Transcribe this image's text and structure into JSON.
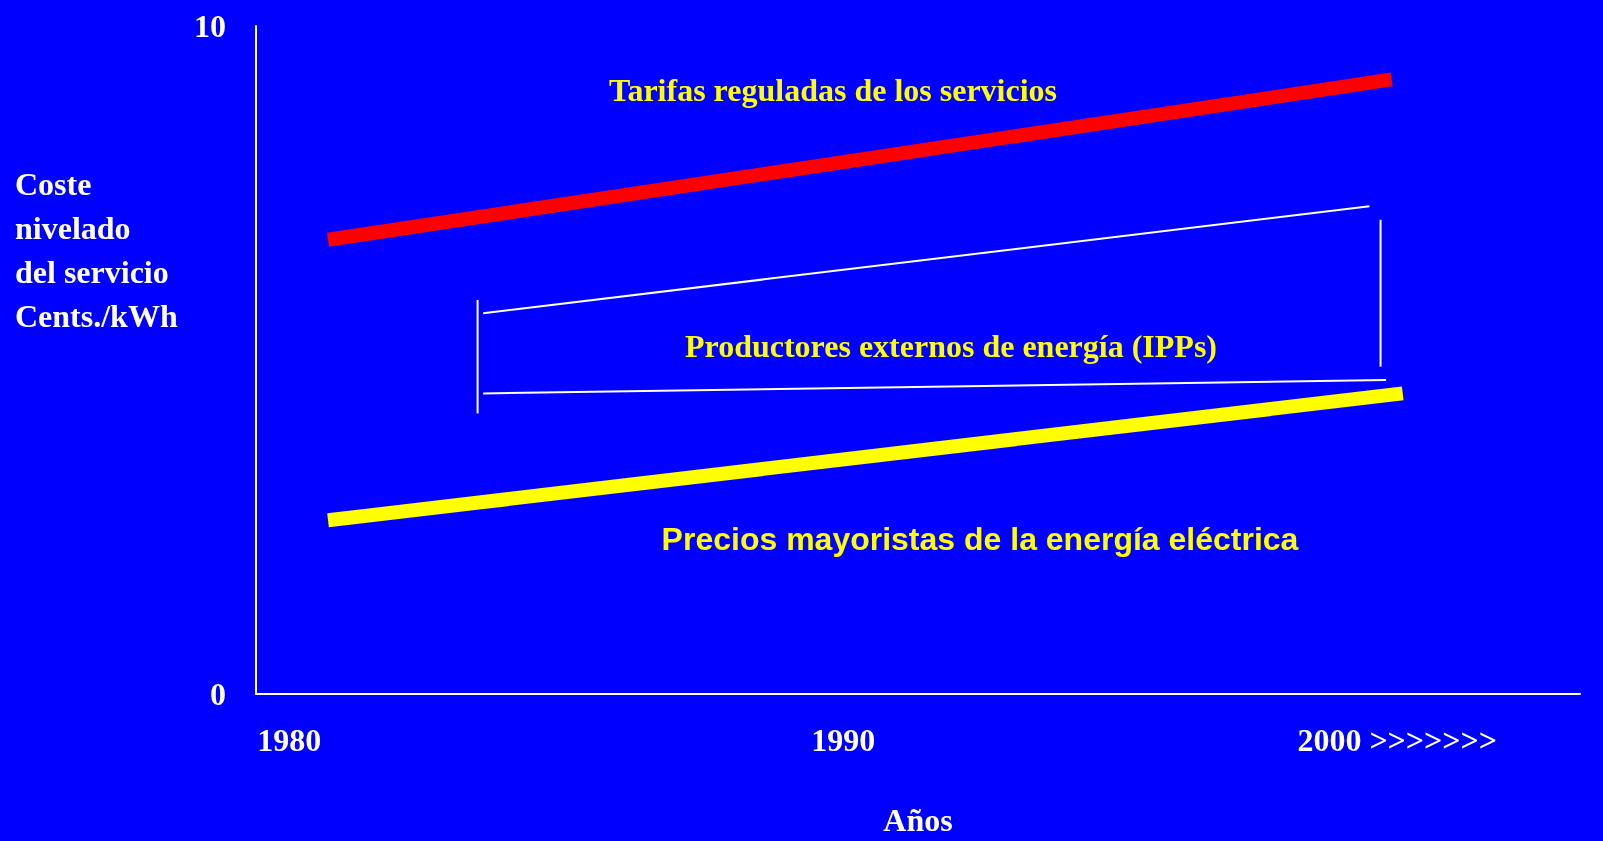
{
  "chart_data": {
    "type": "line",
    "ylabel": "Coste\nnivelado\ndel servicio\nCents./kWh",
    "xlabel": "Años",
    "xlim": [
      1979.4,
      2003.3
    ],
    "xticks": [
      1980,
      1990,
      {
        "value": 2000,
        "label": "2000 >>>>>>>"
      }
    ],
    "ylim": [
      0,
      10
    ],
    "yticks": [
      0,
      10
    ],
    "grid": false,
    "marker": "none",
    "line_style": "solid",
    "series": [
      {
        "color": "#ff0000",
        "x": [
          1980.7,
          1999.9
        ],
        "values": [
          6.8,
          9.2
        ]
      },
      {
        "color": "#ffff00",
        "x": [
          1980.7,
          2000.1
        ],
        "values": [
          2.6,
          4.5
        ]
      },
      {
        "color": "#ffffff",
        "x": [
          1983.5,
          1999.5
        ],
        "values": [
          5.7,
          7.3
        ]
      },
      {
        "color": "#ffffff",
        "x": [
          1983.5,
          1999.8
        ],
        "values": [
          4.5,
          4.7
        ]
      },
      {
        "color": "#ffffff",
        "x": [
          1983.4,
          1983.4
        ],
        "values": [
          4.2,
          5.9
        ]
      },
      {
        "color": "#ffffff",
        "x": [
          1999.7,
          1999.7
        ],
        "values": [
          4.9,
          7.1
        ]
      }
    ],
    "annotations": [
      "Tarifas reguladas de los servicios",
      "Productores externos de energía (IPPs)",
      "Precios mayoristas de la energía eléctrica"
    ]
  }
}
